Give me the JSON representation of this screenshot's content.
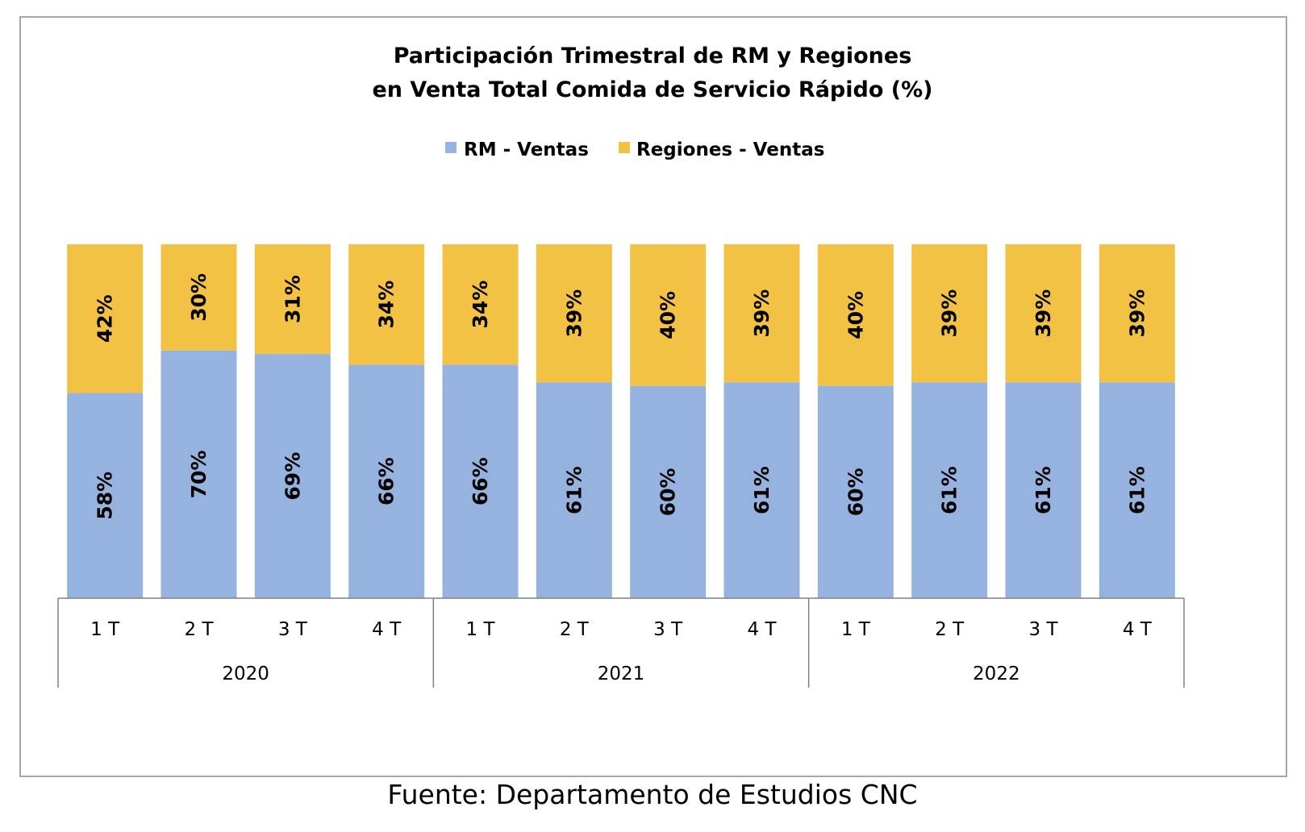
{
  "chart_data": {
    "type": "bar",
    "stacked": true,
    "title": [
      "Participación Trimestral de RM y Regiones",
      "en Venta Total Comida de Servicio Rápido (%)"
    ],
    "legend_position": "top",
    "ylim": [
      0,
      100
    ],
    "grid": false,
    "categories": [
      "1 T",
      "2 T",
      "3 T",
      "4 T",
      "1 T",
      "2 T",
      "3 T",
      "4 T",
      "1 T",
      "2 T",
      "3 T",
      "4 T"
    ],
    "groups": [
      {
        "label": "2020",
        "count": 4
      },
      {
        "label": "2021",
        "count": 4
      },
      {
        "label": "2022",
        "count": 4
      }
    ],
    "series": [
      {
        "name": "RM - Ventas",
        "color": "#95b3de",
        "values": [
          58,
          70,
          69,
          66,
          66,
          61,
          60,
          61,
          60,
          61,
          61,
          61
        ]
      },
      {
        "name": "Regiones - Ventas",
        "color": "#f3c244",
        "values": [
          42,
          30,
          31,
          34,
          34,
          39,
          40,
          39,
          40,
          39,
          39,
          39
        ]
      }
    ],
    "value_suffix": "%"
  },
  "source": "Fuente: Departamento de Estudios CNC"
}
